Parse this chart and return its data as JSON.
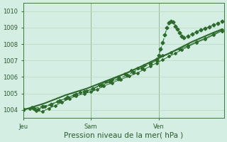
{
  "xlabel": "Pression niveau de la mer( hPa )",
  "background_color": "#d4eee4",
  "grid_color": "#b8d8c0",
  "line_color": "#2d6b2d",
  "ylim": [
    1003.5,
    1010.5
  ],
  "yticks": [
    1004,
    1005,
    1006,
    1007,
    1008,
    1009,
    1010
  ],
  "xtick_labels": [
    "Jeu",
    "Sam",
    "Ven"
  ],
  "xtick_positions": [
    0,
    32,
    64
  ],
  "xlim": [
    0,
    95
  ],
  "line1_x": [
    0,
    4,
    7,
    10,
    13,
    16,
    20,
    24,
    27,
    30,
    33,
    36,
    39,
    42,
    45,
    48,
    51,
    54,
    57,
    60,
    63,
    66,
    70,
    74,
    78,
    82,
    86,
    90,
    94
  ],
  "line1_y": [
    1004.0,
    1004.15,
    1004.05,
    1004.2,
    1004.3,
    1004.5,
    1004.7,
    1004.9,
    1005.05,
    1005.15,
    1005.3,
    1005.5,
    1005.7,
    1005.85,
    1006.0,
    1006.2,
    1006.4,
    1006.55,
    1006.7,
    1006.9,
    1007.1,
    1007.3,
    1007.5,
    1007.7,
    1007.9,
    1008.15,
    1008.35,
    1008.6,
    1008.85
  ],
  "line2_x": [
    0,
    3,
    6,
    9,
    12,
    15,
    18,
    22,
    25,
    29,
    32,
    35,
    38,
    42,
    46,
    50,
    54,
    57,
    60,
    63,
    66,
    69,
    72,
    75,
    78,
    82,
    86,
    90,
    94
  ],
  "line2_y": [
    1004.05,
    1004.1,
    1003.95,
    1003.9,
    1004.1,
    1004.25,
    1004.45,
    1004.7,
    1004.85,
    1005.0,
    1005.1,
    1005.25,
    1005.45,
    1005.65,
    1005.85,
    1006.05,
    1006.25,
    1006.45,
    1006.65,
    1006.85,
    1007.05,
    1007.25,
    1007.45,
    1007.65,
    1007.85,
    1008.1,
    1008.3,
    1008.55,
    1008.8
  ],
  "line3_x": [
    0,
    5,
    9,
    13,
    17,
    21,
    25,
    29,
    33,
    37,
    41,
    45,
    49,
    52,
    56,
    60,
    63,
    64,
    65,
    66,
    67,
    68,
    69,
    70,
    71,
    72,
    73,
    74,
    75,
    76,
    78,
    80,
    82,
    84,
    86,
    88,
    90,
    92,
    94
  ],
  "line3_y": [
    1004.05,
    1004.1,
    1004.2,
    1004.35,
    1004.55,
    1004.75,
    1004.95,
    1005.1,
    1005.3,
    1005.5,
    1005.7,
    1005.9,
    1006.1,
    1006.3,
    1006.55,
    1006.8,
    1007.0,
    1007.3,
    1007.7,
    1008.1,
    1008.55,
    1009.0,
    1009.3,
    1009.4,
    1009.35,
    1009.1,
    1008.9,
    1008.7,
    1008.5,
    1008.4,
    1008.5,
    1008.6,
    1008.75,
    1008.85,
    1008.95,
    1009.05,
    1009.15,
    1009.25,
    1009.4
  ],
  "line4_x": [
    0,
    10,
    20,
    30,
    40,
    50,
    60,
    70,
    80,
    90,
    94
  ],
  "line4_y": [
    1004.0,
    1004.4,
    1004.9,
    1005.3,
    1005.8,
    1006.3,
    1006.9,
    1007.5,
    1008.15,
    1008.7,
    1008.9
  ]
}
